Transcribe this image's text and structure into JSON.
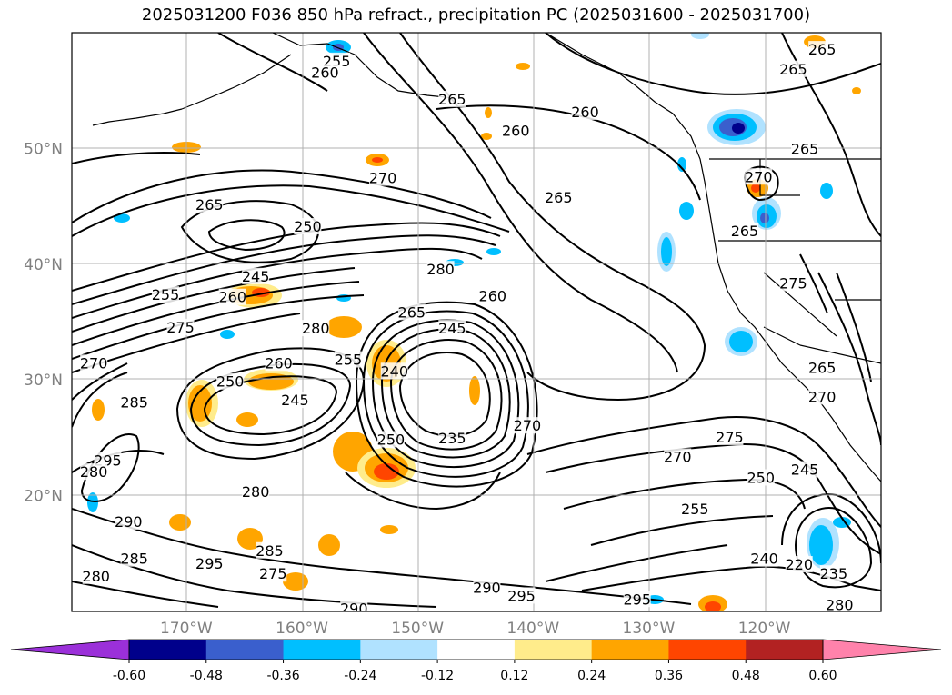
{
  "chart_data": {
    "type": "contour-map",
    "title": "2025031200 F036 850 hPa refract., precipitation PC (2025031600 - 2025031700)",
    "lat_ticks": [
      "50°N",
      "40°N",
      "30°N",
      "20°N"
    ],
    "lon_ticks": [
      "170°W",
      "160°W",
      "150°W",
      "140°W",
      "130°W",
      "120°W"
    ],
    "lat_values": [
      50,
      40,
      30,
      20
    ],
    "lon_values": [
      -170,
      -160,
      -150,
      -140,
      -130,
      -120
    ],
    "colorbar": {
      "ticks": [
        "-0.60",
        "-0.48",
        "-0.36",
        "-0.24",
        "-0.12",
        "0.12",
        "0.24",
        "0.36",
        "0.48",
        "0.60"
      ],
      "colors": [
        "#9b30d9",
        "#00008b",
        "#3a5fcd",
        "#00bfff",
        "#b0e2ff",
        "#ffffff",
        "#ffec8b",
        "#ffa500",
        "#ff4500",
        "#b22222",
        "#ff82ab"
      ]
    },
    "contour_labels": [
      {
        "text": "255",
        "lon": -157,
        "lat": 57.5
      },
      {
        "text": "260",
        "lon": -158,
        "lat": 56.5
      },
      {
        "text": "265",
        "lon": -147,
        "lat": 54.2
      },
      {
        "text": "265",
        "lon": -115,
        "lat": 58.5
      },
      {
        "text": "265",
        "lon": -117.5,
        "lat": 56.8
      },
      {
        "text": "260",
        "lon": -135.5,
        "lat": 53.1
      },
      {
        "text": "260",
        "lon": -141.5,
        "lat": 51.5
      },
      {
        "text": "265",
        "lon": -116.5,
        "lat": 49.9
      },
      {
        "text": "270",
        "lon": -120.5,
        "lat": 47.5
      },
      {
        "text": "270",
        "lon": -153,
        "lat": 47.4
      },
      {
        "text": "265",
        "lon": -168,
        "lat": 45.1
      },
      {
        "text": "265",
        "lon": -137.8,
        "lat": 45.7
      },
      {
        "text": "250",
        "lon": -159.5,
        "lat": 43.2
      },
      {
        "text": "265",
        "lon": -121.7,
        "lat": 42.8
      },
      {
        "text": "245",
        "lon": -164,
        "lat": 38.9
      },
      {
        "text": "280",
        "lon": -148,
        "lat": 39.5
      },
      {
        "text": "255",
        "lon": -171.8,
        "lat": 37.3
      },
      {
        "text": "260",
        "lon": -166,
        "lat": 37.1
      },
      {
        "text": "260",
        "lon": -143.5,
        "lat": 37.2
      },
      {
        "text": "275",
        "lon": -117.5,
        "lat": 38.3
      },
      {
        "text": "265",
        "lon": -150.5,
        "lat": 35.8
      },
      {
        "text": "275",
        "lon": -170.5,
        "lat": 34.5
      },
      {
        "text": "280",
        "lon": -158.8,
        "lat": 34.4
      },
      {
        "text": "245",
        "lon": -147,
        "lat": 34.4
      },
      {
        "text": "270",
        "lon": -178,
        "lat": 31.4
      },
      {
        "text": "255",
        "lon": -156,
        "lat": 31.7
      },
      {
        "text": "260",
        "lon": -162,
        "lat": 31.4
      },
      {
        "text": "240",
        "lon": -152,
        "lat": 30.7
      },
      {
        "text": "250",
        "lon": -166.2,
        "lat": 29.8
      },
      {
        "text": "245",
        "lon": -160.6,
        "lat": 28.2
      },
      {
        "text": "285",
        "lon": -174.5,
        "lat": 28.0
      },
      {
        "text": "265",
        "lon": -115,
        "lat": 31.0
      },
      {
        "text": "270",
        "lon": -115,
        "lat": 28.5
      },
      {
        "text": "270",
        "lon": -140.5,
        "lat": 26.0
      },
      {
        "text": "250",
        "lon": -152.3,
        "lat": 24.8
      },
      {
        "text": "235",
        "lon": -147,
        "lat": 24.9
      },
      {
        "text": "275",
        "lon": -123,
        "lat": 25.0
      },
      {
        "text": "270",
        "lon": -127.5,
        "lat": 23.3
      },
      {
        "text": "295",
        "lon": -176.8,
        "lat": 23.0
      },
      {
        "text": "245",
        "lon": -116.5,
        "lat": 22.2
      },
      {
        "text": "250",
        "lon": -120.3,
        "lat": 21.5
      },
      {
        "text": "280",
        "lon": -178,
        "lat": 22.0
      },
      {
        "text": "280",
        "lon": -164,
        "lat": 20.3
      },
      {
        "text": "255",
        "lon": -126,
        "lat": 18.8
      },
      {
        "text": "290",
        "lon": -175,
        "lat": 17.7
      },
      {
        "text": "285",
        "lon": -162.8,
        "lat": 15.2
      },
      {
        "text": "240",
        "lon": -120,
        "lat": 14.5
      },
      {
        "text": "220",
        "lon": -117,
        "lat": 14.0
      },
      {
        "text": "280",
        "lon": -177.8,
        "lat": 13.0
      },
      {
        "text": "285",
        "lon": -174.5,
        "lat": 14.5
      },
      {
        "text": "295",
        "lon": -168,
        "lat": 14.1
      },
      {
        "text": "275",
        "lon": -162.5,
        "lat": 13.2
      },
      {
        "text": "235",
        "lon": -114,
        "lat": 13.2
      },
      {
        "text": "290",
        "lon": -144,
        "lat": 12.0
      },
      {
        "text": "295",
        "lon": -141,
        "lat": 11.3
      },
      {
        "text": "295",
        "lon": -131,
        "lat": 11.0
      },
      {
        "text": "290",
        "lon": -155.5,
        "lat": 10.2
      },
      {
        "text": "280",
        "lon": -113.5,
        "lat": 10.5
      }
    ]
  }
}
